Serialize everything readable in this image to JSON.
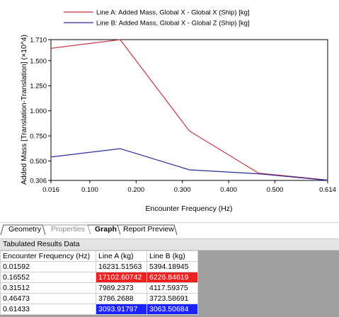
{
  "chart_data": {
    "type": "line",
    "x": [
      0.01592,
      0.16552,
      0.31512,
      0.46473,
      0.61433
    ],
    "series": [
      {
        "name": "Line A: Added Mass, Global X - Global X (Ship) [kg]",
        "color": "#c8323c",
        "values": [
          1.6232,
          1.7103,
          0.7989,
          0.3786,
          0.3094
        ]
      },
      {
        "name": "Line B: Added Mass, Global X - Global Z (Ship) [kg]",
        "color": "#2a2a9e",
        "values": [
          0.5394,
          0.6227,
          0.4118,
          0.3724,
          0.3064
        ]
      }
    ],
    "xlabel": "Encounter Frequency (Hz)",
    "ylabel": "Added Mass [Translation-Translation] (×10^4)",
    "xlim": [
      0.016,
      0.614
    ],
    "ylim": [
      0.306,
      1.71
    ],
    "xticks": [
      "0.016",
      "0.100",
      "0.200",
      "0.300",
      "0.400",
      "0.500",
      "0.614"
    ],
    "xtick_values": [
      0.016,
      0.1,
      0.2,
      0.3,
      0.4,
      0.5,
      0.614
    ],
    "yticks": [
      "0.306",
      "0.500",
      "0.750",
      "1.000",
      "1.250",
      "1.500",
      "1.710"
    ],
    "ytick_values": [
      0.306,
      0.5,
      0.75,
      1.0,
      1.25,
      1.5,
      1.71
    ],
    "legend": "top"
  },
  "tabs": [
    {
      "label": "Geometry",
      "state": "normal"
    },
    {
      "label": "Properties",
      "state": "disabled"
    },
    {
      "label": "Graph",
      "state": "active"
    },
    {
      "label": "Report Preview",
      "state": "normal"
    }
  ],
  "results": {
    "title": "Tabulated Results Data",
    "headers": [
      "Encounter Frequency (Hz)",
      "Line A (kg)",
      "Line B (kg)"
    ],
    "rows": [
      [
        "0.01592",
        "16231.51563",
        "5394.18945"
      ],
      [
        "0.16552",
        "17102.60742",
        "6226.84619"
      ],
      [
        "0.31512",
        "7989.2373",
        "4117.59375"
      ],
      [
        "0.46473",
        "3786.2688",
        "3723.58691"
      ],
      [
        "0.61433",
        "3093.91797",
        "3063.50684"
      ]
    ],
    "highlight_colors": {
      "max": "#ee2020",
      "min": "#1a23ff"
    }
  }
}
